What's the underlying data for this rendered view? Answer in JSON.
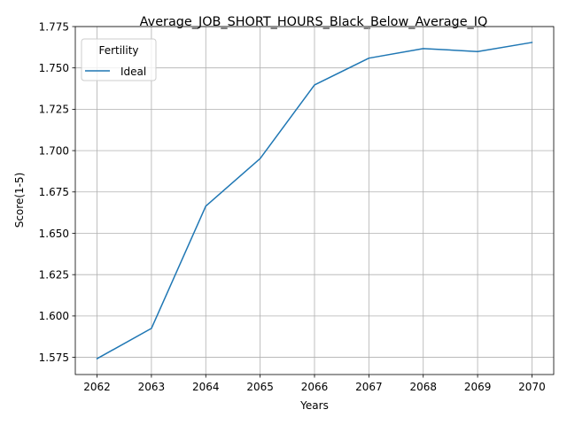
{
  "chart_data": {
    "type": "line",
    "title": "Average_JOB_SHORT_HOURS_Black_Below_Average_IQ",
    "xlabel": "Years",
    "ylabel": "Score(1-5)",
    "x": [
      2062,
      2063,
      2064,
      2065,
      2066,
      2067,
      2068,
      2069,
      2070
    ],
    "series": [
      {
        "name": "Ideal",
        "color": "#1f77b4",
        "values": [
          1.5742,
          1.5925,
          1.6664,
          1.6952,
          1.7397,
          1.7559,
          1.7617,
          1.7599,
          1.7654
        ]
      }
    ],
    "xlim": [
      2061.6,
      2070.4
    ],
    "ylim": [
      1.5646,
      1.775
    ],
    "yticks": [
      "1.575",
      "1.600",
      "1.625",
      "1.650",
      "1.675",
      "1.700",
      "1.725",
      "1.750",
      "1.775"
    ],
    "xticks": [
      "2062",
      "2063",
      "2064",
      "2065",
      "2066",
      "2067",
      "2068",
      "2069",
      "2070"
    ],
    "grid": true,
    "legend": {
      "title": "Fertility",
      "placement": "top-left"
    }
  }
}
